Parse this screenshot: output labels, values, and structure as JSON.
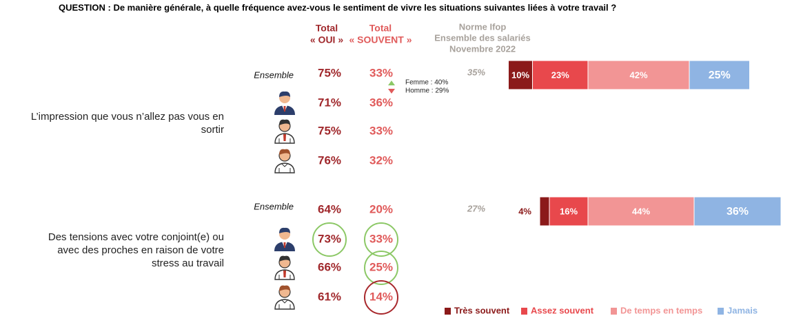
{
  "question": "QUESTION : De manière générale, à quelle fréquence avez-vous le sentiment de vivre les situations suivantes liées à votre travail ?",
  "header_oui": [
    "Total",
    "« OUI »"
  ],
  "header_souvent": [
    "Total",
    "« SOUVENT »"
  ],
  "header_norme": [
    "Norme Ifop",
    "Ensemble des salariés",
    "Novembre 2022"
  ],
  "legend": [
    {
      "name": "Très souvent",
      "color": "#8b1a1a"
    },
    {
      "name": "Assez souvent",
      "color": "#e8484c"
    },
    {
      "name": "De temps en temps",
      "color": "#f29595"
    },
    {
      "name": "Jamais",
      "color": "#8fb4e3"
    }
  ],
  "items": [
    {
      "label": [
        "L’impression que vous n’allez pas vous en",
        "sortir"
      ],
      "ensemble": "Ensemble",
      "oui": [
        "75%",
        "71%",
        "75%",
        "76%"
      ],
      "souvent": [
        "33%",
        "36%",
        "33%",
        "32%"
      ],
      "oui_circles": [
        null,
        null,
        null,
        null
      ],
      "souvent_circles": [
        null,
        null,
        null,
        null
      ],
      "norme": "35%",
      "note": [
        "Femme : 40%",
        "Homme : 29%"
      ],
      "bars": [
        10,
        23,
        42,
        25
      ],
      "bar_labels": [
        "10%",
        "23%",
        "42%",
        "25%"
      ]
    },
    {
      "label": [
        "Des tensions avec votre conjoint(e) ou",
        "avec des proches en raison de votre",
        "stress au travail"
      ],
      "ensemble": "Ensemble",
      "oui": [
        "64%",
        "73%",
        "66%",
        "61%"
      ],
      "souvent": [
        "20%",
        "33%",
        "25%",
        "14%"
      ],
      "oui_circles": [
        null,
        "#8cc866",
        null,
        null
      ],
      "souvent_circles": [
        null,
        "#8cc866",
        "#8cc866",
        "#a8282c"
      ],
      "norme": "27%",
      "bars": [
        4,
        16,
        44,
        36
      ],
      "bar_labels": [
        "4%",
        "16%",
        "44%",
        "36%"
      ]
    }
  ]
}
